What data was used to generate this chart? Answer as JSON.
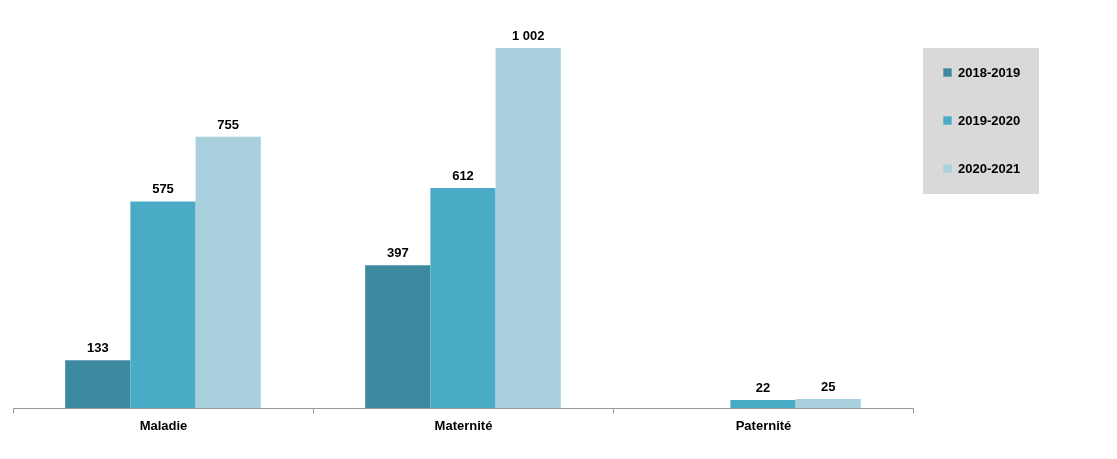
{
  "chart_data": {
    "type": "bar",
    "categories": [
      "Maladie",
      "Maternité",
      "Paternité"
    ],
    "series": [
      {
        "name": "2018-2019",
        "color": "#3d8aa0",
        "values": [
          133,
          397,
          null
        ]
      },
      {
        "name": "2019-2020",
        "color": "#4aabc6",
        "values": [
          575,
          612,
          22
        ]
      },
      {
        "name": "2020-2021",
        "color": "#a9d0dd",
        "values": [
          755,
          1002,
          25
        ]
      }
    ],
    "data_labels": true,
    "legend": "right",
    "grid": false
  }
}
